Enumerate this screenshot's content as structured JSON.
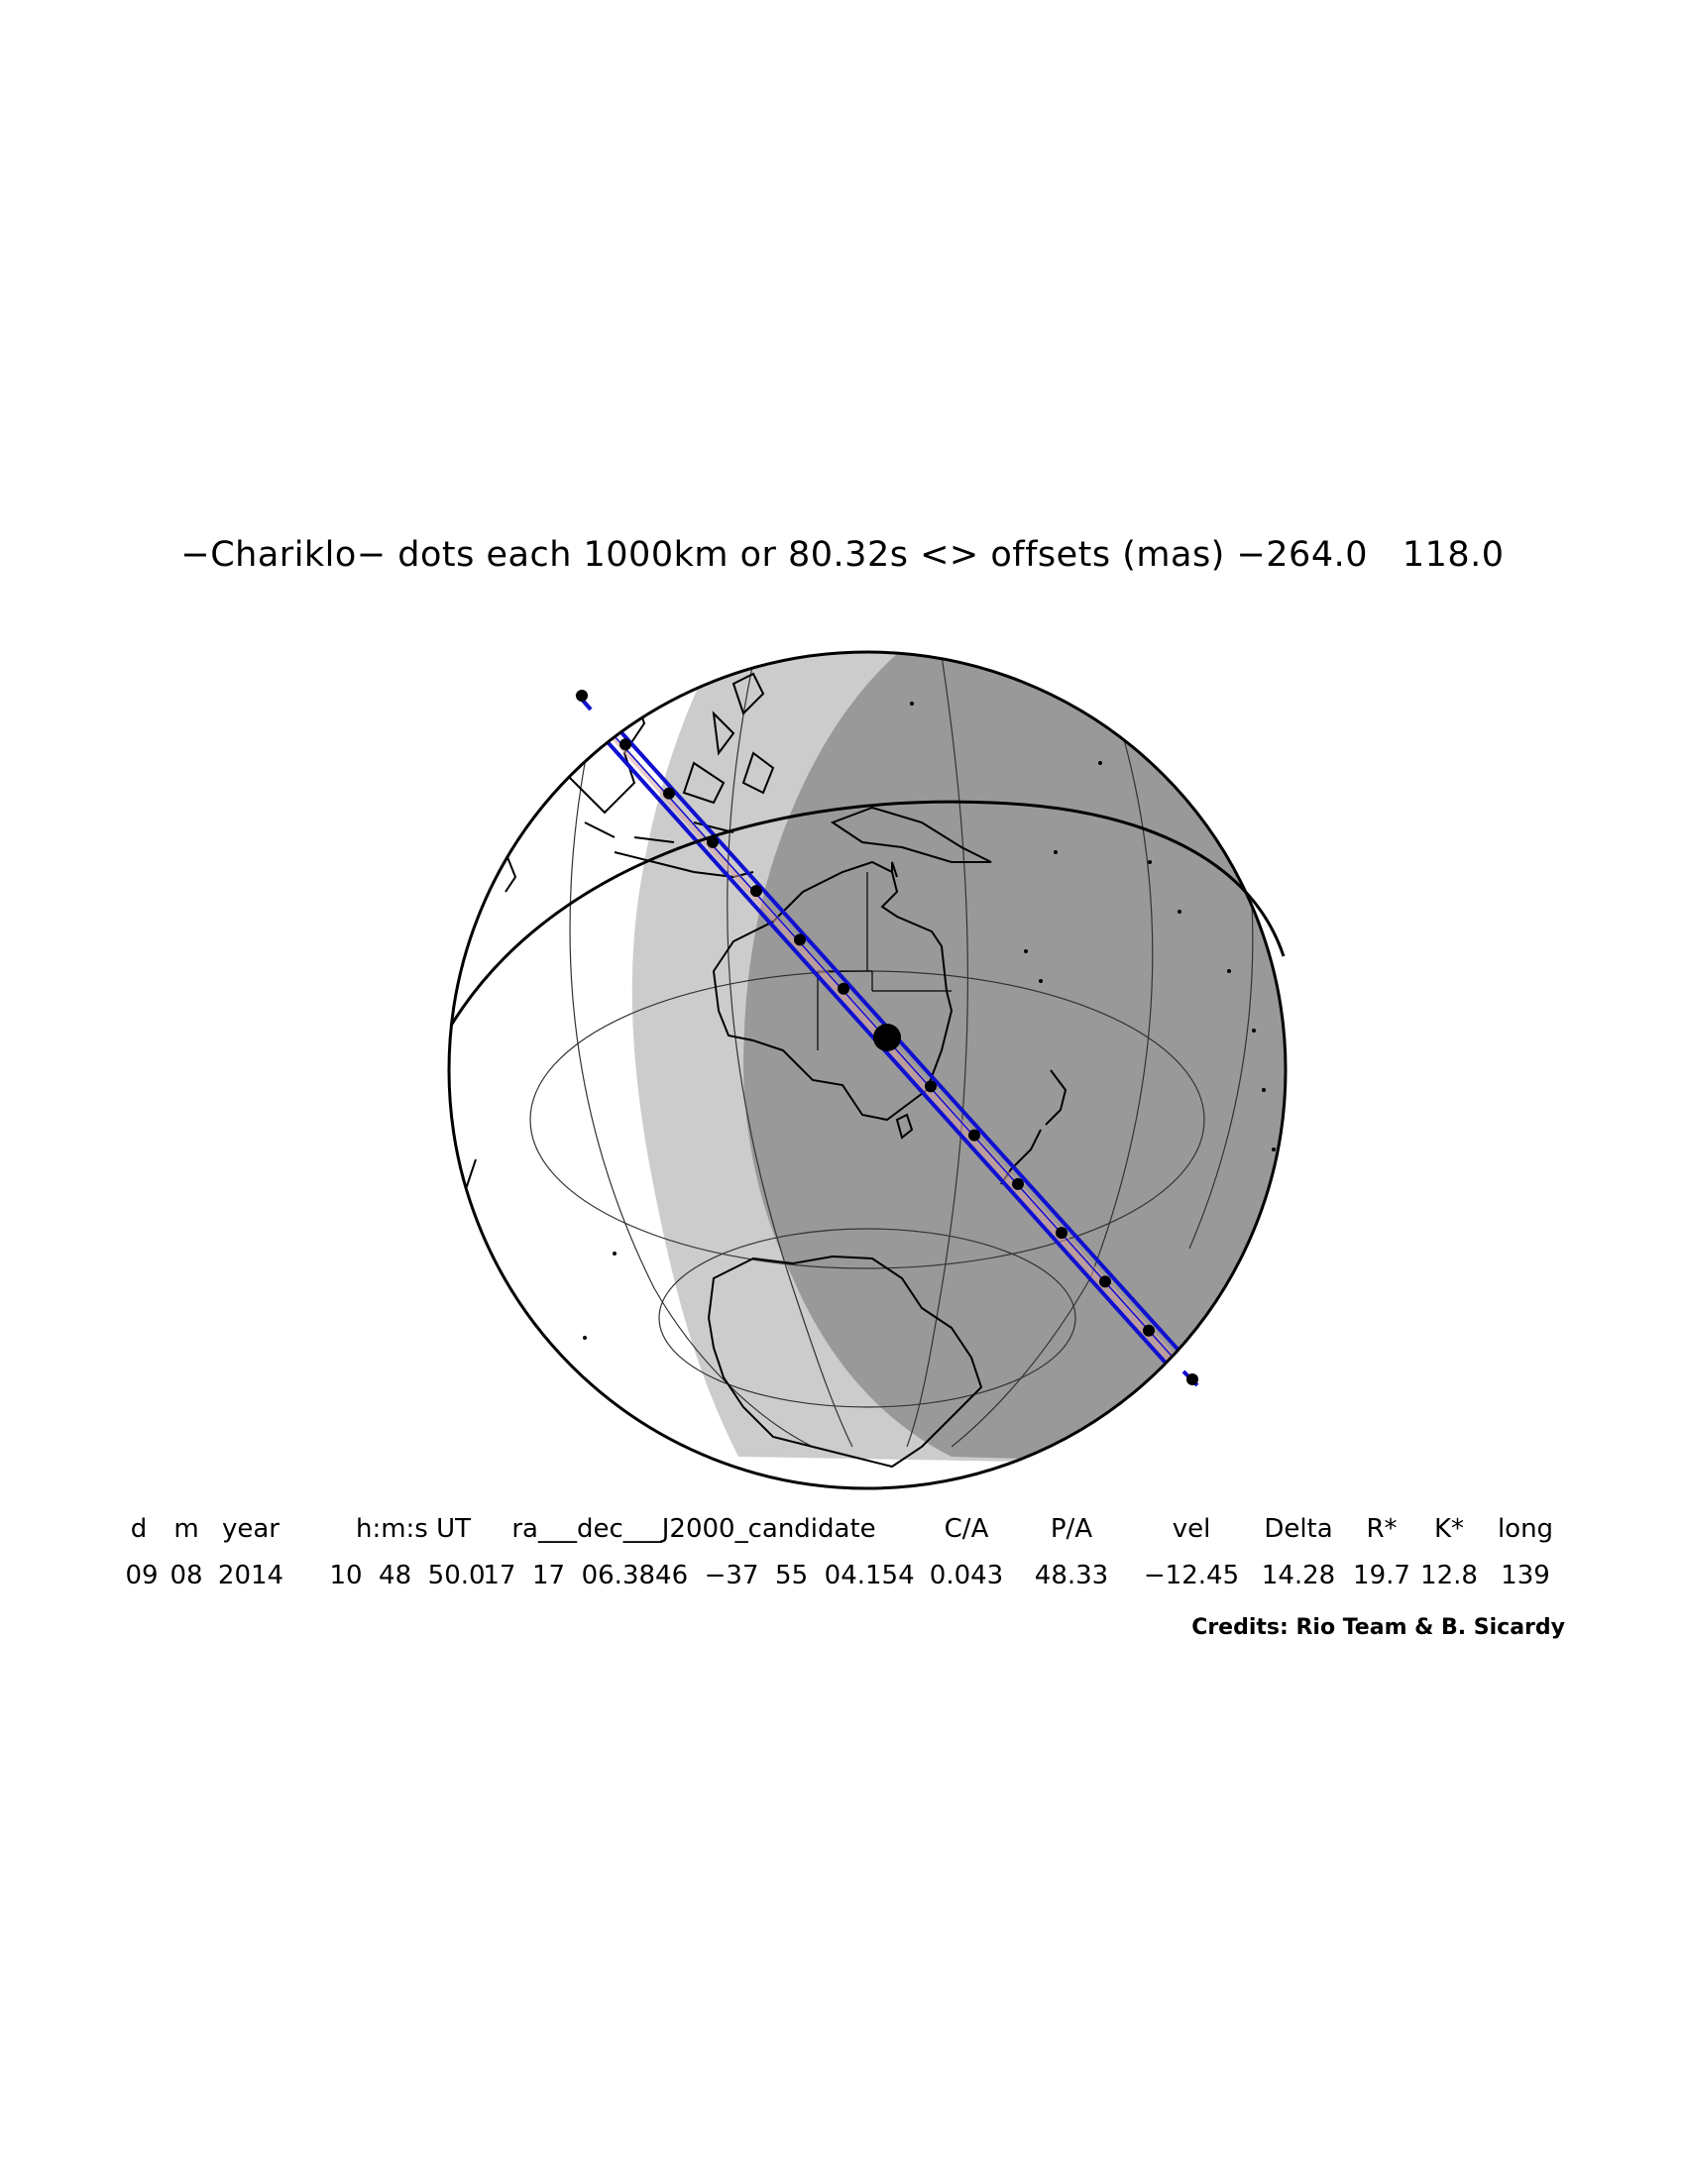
{
  "title": "−Chariklo− dots each 1000km or 80.32s <> offsets (mas) −264.0   118.0",
  "table": {
    "headers": [
      "d",
      "m",
      "year",
      "h:m:s UT",
      "ra___dec___J2000_candidate",
      "C/A",
      "P/A",
      "vel",
      "Delta",
      "R*",
      "K*",
      "long"
    ],
    "values": [
      "09",
      "08",
      "2014",
      "10  48  50.0",
      "17  17  06.3846  −37  55  04.154",
      "0.043",
      "48.33",
      "−12.45",
      "14.28",
      "19.7",
      "12.8",
      "139"
    ]
  },
  "credits": "Credits: Rio Team & B. Sicardy",
  "colors": {
    "path": "#1010d0",
    "night": "#999999",
    "twilight": "#cccccc",
    "day": "#ffffff",
    "outline": "#000000"
  },
  "occultation": {
    "dot_count": 15,
    "central_dot_index": 7,
    "dot_spacing": "1000km",
    "time_step": "80.32s"
  }
}
